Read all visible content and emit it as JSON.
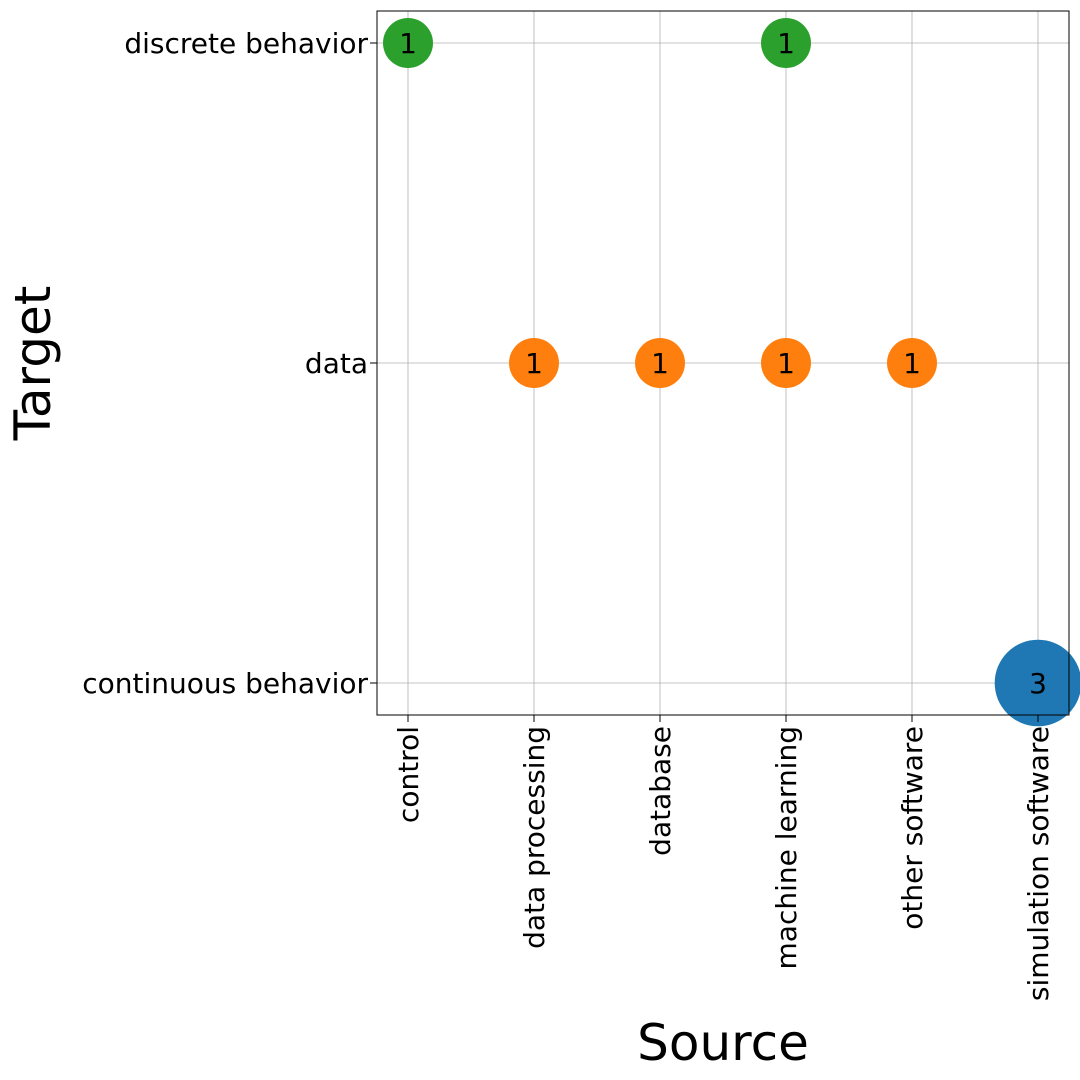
{
  "chart_data": {
    "type": "scatter",
    "xlabel": "Source",
    "ylabel": "Target",
    "x_categories": [
      "control",
      "data processing",
      "database",
      "machine learning",
      "other software",
      "simulation software"
    ],
    "y_categories": [
      "continuous behavior",
      "data",
      "discrete behavior"
    ],
    "grid": true,
    "points": [
      {
        "x": "control",
        "y": "discrete behavior",
        "value": 1,
        "color": "#2ca02c"
      },
      {
        "x": "machine learning",
        "y": "discrete behavior",
        "value": 1,
        "color": "#2ca02c"
      },
      {
        "x": "data processing",
        "y": "data",
        "value": 1,
        "color": "#ff7f0e"
      },
      {
        "x": "database",
        "y": "data",
        "value": 1,
        "color": "#ff7f0e"
      },
      {
        "x": "machine learning",
        "y": "data",
        "value": 1,
        "color": "#ff7f0e"
      },
      {
        "x": "other software",
        "y": "data",
        "value": 1,
        "color": "#ff7f0e"
      },
      {
        "x": "simulation software",
        "y": "continuous behavior",
        "value": 3,
        "color": "#1f77b4"
      }
    ]
  }
}
